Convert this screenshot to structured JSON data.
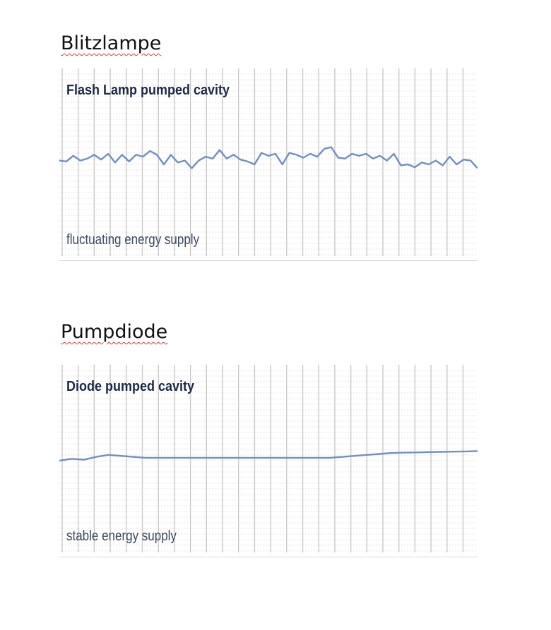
{
  "sections": [
    {
      "heading": "Blitzlampe",
      "chart_data": {
        "type": "line",
        "title": "Flash Lamp pumped cavity",
        "annotation": "fluctuating energy supply",
        "xlabel": "",
        "ylabel": "",
        "grid": true,
        "ylim": [
          0,
          10
        ],
        "series": [
          {
            "color": "#6f8fc7",
            "values": [
              5.2,
              5.15,
              5.45,
              5.2,
              5.3,
              5.5,
              5.25,
              5.55,
              5.1,
              5.5,
              5.15,
              5.5,
              5.4,
              5.7,
              5.5,
              5.0,
              5.5,
              5.1,
              5.2,
              4.8,
              5.2,
              5.4,
              5.3,
              5.75,
              5.3,
              5.5,
              5.25,
              5.15,
              5.0,
              5.6,
              5.45,
              5.55,
              5.0,
              5.6,
              5.5,
              5.35,
              5.55,
              5.4,
              5.8,
              5.9,
              5.35,
              5.3,
              5.55,
              5.45,
              5.55,
              5.3,
              5.45,
              5.2,
              5.55,
              4.95,
              5.0,
              4.85,
              5.1,
              5.0,
              5.2,
              4.95,
              5.4,
              5.0,
              5.25,
              5.2,
              4.8
            ]
          }
        ]
      }
    },
    {
      "heading": "Pumpdiode",
      "chart_data": {
        "type": "line",
        "title": "Diode pumped cavity",
        "annotation": "stable energy supply",
        "xlabel": "",
        "ylabel": "",
        "grid": true,
        "ylim": [
          0,
          10
        ],
        "series": [
          {
            "color": "#6f8fc7",
            "values": [
              5.0,
              5.1,
              5.05,
              5.2,
              5.3,
              5.25,
              5.2,
              5.15,
              5.15,
              5.15,
              5.15,
              5.15,
              5.15,
              5.15,
              5.15,
              5.15,
              5.15,
              5.15,
              5.15,
              5.15,
              5.15,
              5.15,
              5.15,
              5.2,
              5.25,
              5.3,
              5.35,
              5.4,
              5.42,
              5.43,
              5.45,
              5.46,
              5.47,
              5.48,
              5.5
            ]
          }
        ]
      }
    }
  ]
}
